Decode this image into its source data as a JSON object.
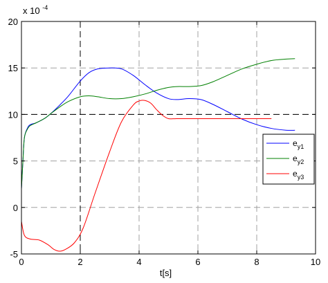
{
  "chart_data": {
    "type": "line",
    "title": "",
    "xlabel": "t[s]",
    "ylabel": "",
    "multiplier_label": {
      "base": "x 10",
      "exponent": "-4"
    },
    "xlim": [
      0,
      10
    ],
    "ylim": [
      -5,
      20
    ],
    "xticks": [
      0,
      2,
      4,
      6,
      8,
      10
    ],
    "yticks": [
      -5,
      0,
      5,
      10,
      15,
      20
    ],
    "grid": true,
    "legend_position": "right",
    "reference_lines": {
      "x": 2,
      "y": 10
    },
    "series": [
      {
        "name": "e",
        "name_sub": "y1",
        "color": "#0000ff",
        "x": [
          0,
          0.05,
          0.1,
          0.2,
          0.3,
          0.5,
          0.8,
          1.0,
          1.3,
          1.6,
          2.0,
          2.3,
          2.6,
          3.0,
          3.4,
          3.8,
          4.2,
          4.6,
          5.0,
          5.3,
          5.7,
          6.1,
          6.5,
          7.0,
          7.5,
          8.0,
          8.5,
          9.0,
          9.3
        ],
        "y": [
          2,
          5,
          7.5,
          8.5,
          8.9,
          9.1,
          9.6,
          10.1,
          11.0,
          12.0,
          13.6,
          14.5,
          14.9,
          15.0,
          14.9,
          14.2,
          13.2,
          12.3,
          11.7,
          11.6,
          11.7,
          11.6,
          11.1,
          10.3,
          9.5,
          8.9,
          8.5,
          8.3,
          8.3
        ]
      },
      {
        "name": "e",
        "name_sub": "y2",
        "color": "#008000",
        "x": [
          0,
          0.05,
          0.1,
          0.2,
          0.3,
          0.5,
          0.8,
          1.0,
          1.3,
          1.6,
          2.0,
          2.3,
          2.6,
          3.0,
          3.4,
          3.8,
          4.2,
          4.6,
          5.0,
          5.3,
          5.7,
          6.1,
          6.5,
          7.0,
          7.5,
          8.0,
          8.5,
          9.0,
          9.3
        ],
        "y": [
          2,
          5,
          7.5,
          8.4,
          8.8,
          9.1,
          9.6,
          10.1,
          10.8,
          11.4,
          11.9,
          12.0,
          11.9,
          11.7,
          11.7,
          11.9,
          12.2,
          12.6,
          12.9,
          13.0,
          13.0,
          13.1,
          13.5,
          14.2,
          14.9,
          15.4,
          15.8,
          15.95,
          16.0
        ]
      },
      {
        "name": "e",
        "name_sub": "y3",
        "color": "#ff0000",
        "x": [
          0,
          0.1,
          0.3,
          0.6,
          0.9,
          1.1,
          1.3,
          1.5,
          1.8,
          2.1,
          2.5,
          3.0,
          3.4,
          3.8,
          4.0,
          4.2,
          4.4,
          4.6,
          4.8,
          5.0,
          5.3,
          6.0,
          7.0,
          8.0,
          8.5
        ],
        "y": [
          -1.5,
          -3.0,
          -3.4,
          -3.5,
          -4.0,
          -4.5,
          -4.7,
          -4.5,
          -3.8,
          -2.2,
          1.5,
          6.0,
          9.2,
          11.0,
          11.45,
          11.5,
          11.2,
          10.5,
          9.9,
          9.55,
          9.55,
          9.55,
          9.55,
          9.55,
          9.55
        ]
      }
    ]
  }
}
